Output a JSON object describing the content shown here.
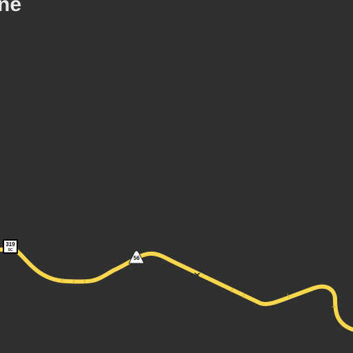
{
  "map": {
    "background": "#303030",
    "place_label": "ne",
    "road_color": "#f9d74c",
    "road_casing": "#d8b73a",
    "label_color": "#e8e8e8"
  },
  "shields": [
    {
      "name": "route-319-shield",
      "number": "319",
      "sub": "SC",
      "icon": "state-route-shield"
    },
    {
      "name": "route-56-shield",
      "number": "56",
      "icon": "state-route-shield-triangle"
    }
  ]
}
